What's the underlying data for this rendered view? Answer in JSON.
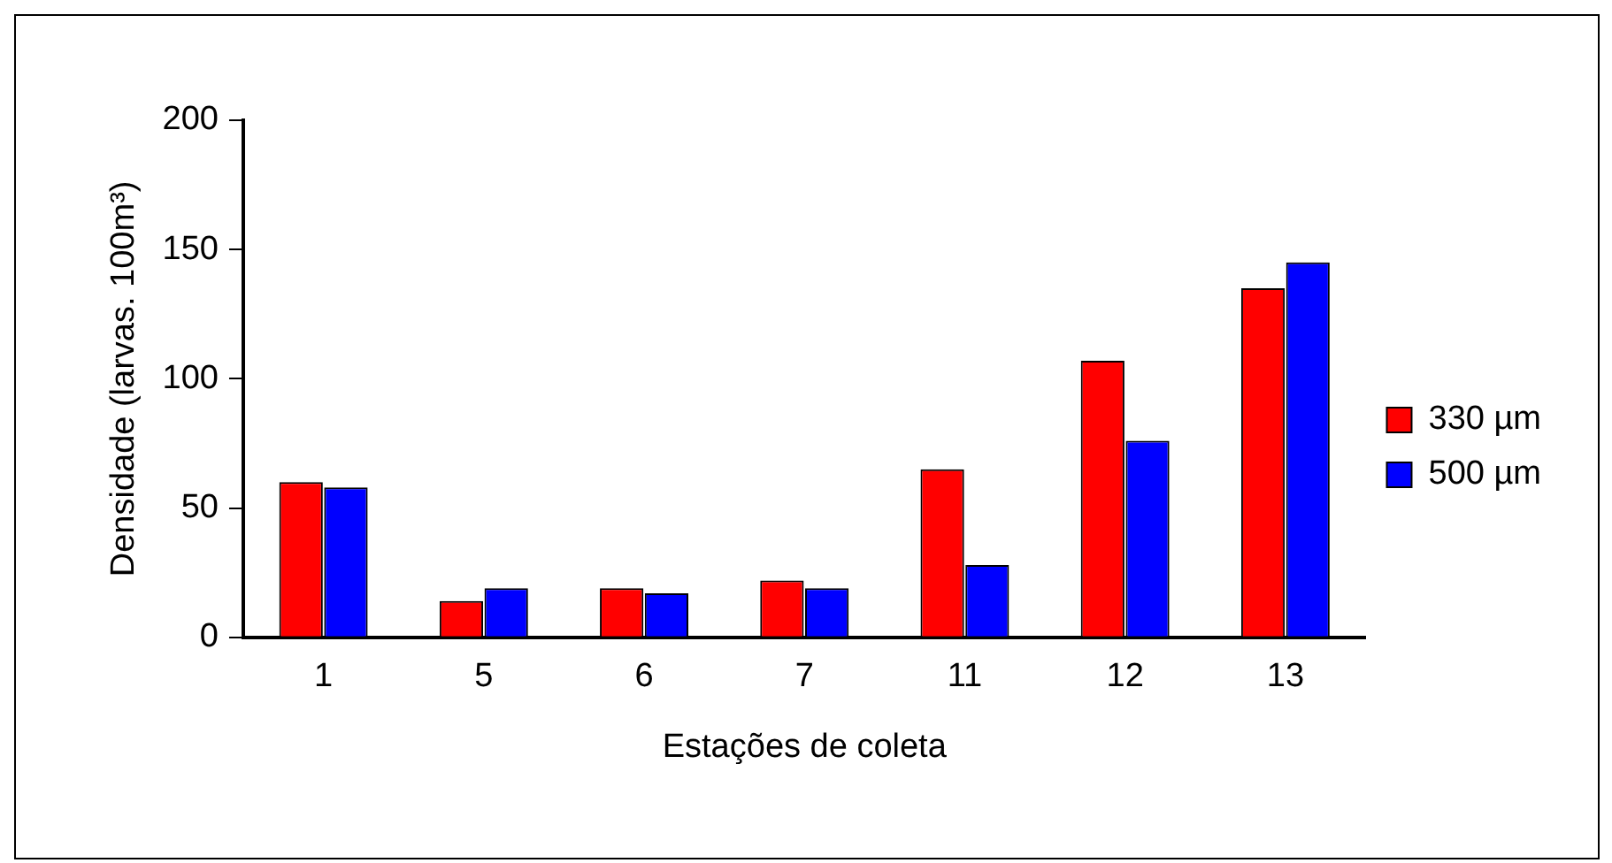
{
  "chart_data": {
    "type": "bar",
    "xlabel": "Estações de coleta",
    "ylabel": "Densidade (larvas. 100m³)",
    "categories": [
      "1",
      "5",
      "6",
      "7",
      "11",
      "12",
      "13"
    ],
    "series": [
      {
        "name": "330 µm",
        "color": "#ff0000",
        "values": [
          60,
          14,
          19,
          22,
          65,
          107,
          135
        ]
      },
      {
        "name": "500 µm",
        "color": "#0000ff",
        "values": [
          58,
          19,
          17,
          19,
          28,
          76,
          145
        ]
      }
    ],
    "ylim": [
      0,
      200
    ],
    "yticks": [
      0,
      50,
      100,
      150,
      200
    ],
    "grid": false,
    "legend": "right"
  }
}
